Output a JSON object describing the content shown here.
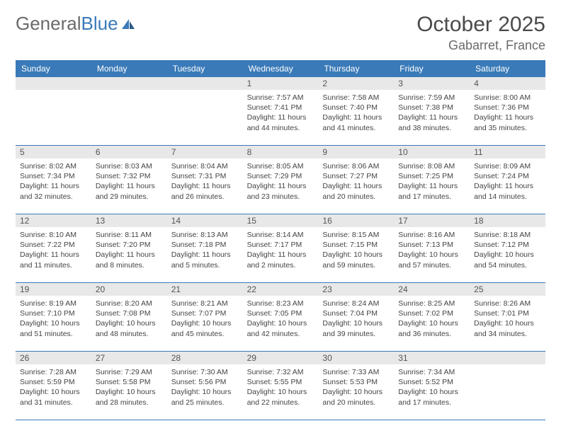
{
  "brand": {
    "part1": "General",
    "part2": "Blue"
  },
  "title": "October 2025",
  "location": "Gabarret, France",
  "colors": {
    "header_bg": "#3a7ab8",
    "header_text": "#ffffff",
    "daynum_bg": "#e8e8e8",
    "border": "#3a7ab8",
    "body_text": "#444444",
    "title_text": "#4a4a4a",
    "logo_gray": "#6a6a6a"
  },
  "day_names": [
    "Sunday",
    "Monday",
    "Tuesday",
    "Wednesday",
    "Thursday",
    "Friday",
    "Saturday"
  ],
  "weeks": [
    [
      {
        "n": "",
        "sr": "",
        "ss": "",
        "dl": ""
      },
      {
        "n": "",
        "sr": "",
        "ss": "",
        "dl": ""
      },
      {
        "n": "",
        "sr": "",
        "ss": "",
        "dl": ""
      },
      {
        "n": "1",
        "sr": "Sunrise: 7:57 AM",
        "ss": "Sunset: 7:41 PM",
        "dl": "Daylight: 11 hours and 44 minutes."
      },
      {
        "n": "2",
        "sr": "Sunrise: 7:58 AM",
        "ss": "Sunset: 7:40 PM",
        "dl": "Daylight: 11 hours and 41 minutes."
      },
      {
        "n": "3",
        "sr": "Sunrise: 7:59 AM",
        "ss": "Sunset: 7:38 PM",
        "dl": "Daylight: 11 hours and 38 minutes."
      },
      {
        "n": "4",
        "sr": "Sunrise: 8:00 AM",
        "ss": "Sunset: 7:36 PM",
        "dl": "Daylight: 11 hours and 35 minutes."
      }
    ],
    [
      {
        "n": "5",
        "sr": "Sunrise: 8:02 AM",
        "ss": "Sunset: 7:34 PM",
        "dl": "Daylight: 11 hours and 32 minutes."
      },
      {
        "n": "6",
        "sr": "Sunrise: 8:03 AM",
        "ss": "Sunset: 7:32 PM",
        "dl": "Daylight: 11 hours and 29 minutes."
      },
      {
        "n": "7",
        "sr": "Sunrise: 8:04 AM",
        "ss": "Sunset: 7:31 PM",
        "dl": "Daylight: 11 hours and 26 minutes."
      },
      {
        "n": "8",
        "sr": "Sunrise: 8:05 AM",
        "ss": "Sunset: 7:29 PM",
        "dl": "Daylight: 11 hours and 23 minutes."
      },
      {
        "n": "9",
        "sr": "Sunrise: 8:06 AM",
        "ss": "Sunset: 7:27 PM",
        "dl": "Daylight: 11 hours and 20 minutes."
      },
      {
        "n": "10",
        "sr": "Sunrise: 8:08 AM",
        "ss": "Sunset: 7:25 PM",
        "dl": "Daylight: 11 hours and 17 minutes."
      },
      {
        "n": "11",
        "sr": "Sunrise: 8:09 AM",
        "ss": "Sunset: 7:24 PM",
        "dl": "Daylight: 11 hours and 14 minutes."
      }
    ],
    [
      {
        "n": "12",
        "sr": "Sunrise: 8:10 AM",
        "ss": "Sunset: 7:22 PM",
        "dl": "Daylight: 11 hours and 11 minutes."
      },
      {
        "n": "13",
        "sr": "Sunrise: 8:11 AM",
        "ss": "Sunset: 7:20 PM",
        "dl": "Daylight: 11 hours and 8 minutes."
      },
      {
        "n": "14",
        "sr": "Sunrise: 8:13 AM",
        "ss": "Sunset: 7:18 PM",
        "dl": "Daylight: 11 hours and 5 minutes."
      },
      {
        "n": "15",
        "sr": "Sunrise: 8:14 AM",
        "ss": "Sunset: 7:17 PM",
        "dl": "Daylight: 11 hours and 2 minutes."
      },
      {
        "n": "16",
        "sr": "Sunrise: 8:15 AM",
        "ss": "Sunset: 7:15 PM",
        "dl": "Daylight: 10 hours and 59 minutes."
      },
      {
        "n": "17",
        "sr": "Sunrise: 8:16 AM",
        "ss": "Sunset: 7:13 PM",
        "dl": "Daylight: 10 hours and 57 minutes."
      },
      {
        "n": "18",
        "sr": "Sunrise: 8:18 AM",
        "ss": "Sunset: 7:12 PM",
        "dl": "Daylight: 10 hours and 54 minutes."
      }
    ],
    [
      {
        "n": "19",
        "sr": "Sunrise: 8:19 AM",
        "ss": "Sunset: 7:10 PM",
        "dl": "Daylight: 10 hours and 51 minutes."
      },
      {
        "n": "20",
        "sr": "Sunrise: 8:20 AM",
        "ss": "Sunset: 7:08 PM",
        "dl": "Daylight: 10 hours and 48 minutes."
      },
      {
        "n": "21",
        "sr": "Sunrise: 8:21 AM",
        "ss": "Sunset: 7:07 PM",
        "dl": "Daylight: 10 hours and 45 minutes."
      },
      {
        "n": "22",
        "sr": "Sunrise: 8:23 AM",
        "ss": "Sunset: 7:05 PM",
        "dl": "Daylight: 10 hours and 42 minutes."
      },
      {
        "n": "23",
        "sr": "Sunrise: 8:24 AM",
        "ss": "Sunset: 7:04 PM",
        "dl": "Daylight: 10 hours and 39 minutes."
      },
      {
        "n": "24",
        "sr": "Sunrise: 8:25 AM",
        "ss": "Sunset: 7:02 PM",
        "dl": "Daylight: 10 hours and 36 minutes."
      },
      {
        "n": "25",
        "sr": "Sunrise: 8:26 AM",
        "ss": "Sunset: 7:01 PM",
        "dl": "Daylight: 10 hours and 34 minutes."
      }
    ],
    [
      {
        "n": "26",
        "sr": "Sunrise: 7:28 AM",
        "ss": "Sunset: 5:59 PM",
        "dl": "Daylight: 10 hours and 31 minutes."
      },
      {
        "n": "27",
        "sr": "Sunrise: 7:29 AM",
        "ss": "Sunset: 5:58 PM",
        "dl": "Daylight: 10 hours and 28 minutes."
      },
      {
        "n": "28",
        "sr": "Sunrise: 7:30 AM",
        "ss": "Sunset: 5:56 PM",
        "dl": "Daylight: 10 hours and 25 minutes."
      },
      {
        "n": "29",
        "sr": "Sunrise: 7:32 AM",
        "ss": "Sunset: 5:55 PM",
        "dl": "Daylight: 10 hours and 22 minutes."
      },
      {
        "n": "30",
        "sr": "Sunrise: 7:33 AM",
        "ss": "Sunset: 5:53 PM",
        "dl": "Daylight: 10 hours and 20 minutes."
      },
      {
        "n": "31",
        "sr": "Sunrise: 7:34 AM",
        "ss": "Sunset: 5:52 PM",
        "dl": "Daylight: 10 hours and 17 minutes."
      },
      {
        "n": "",
        "sr": "",
        "ss": "",
        "dl": ""
      }
    ]
  ]
}
